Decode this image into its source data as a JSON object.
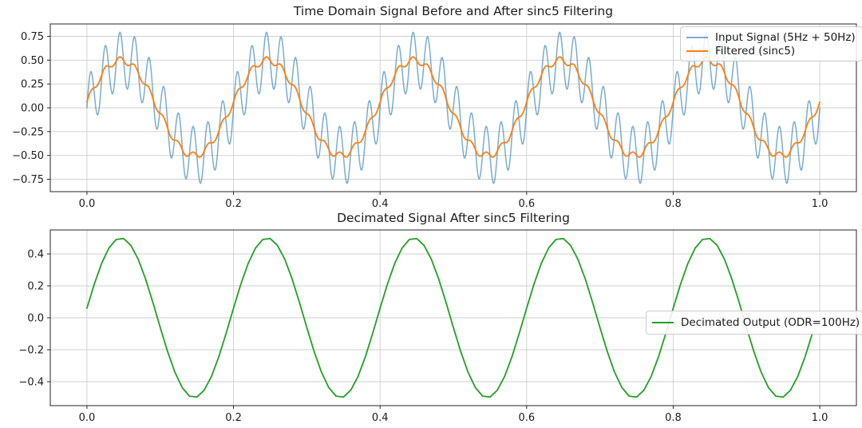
{
  "figure": {
    "background": "#ffffff",
    "grid_color": "#cfcfcf",
    "spine_color": "#262626",
    "text_color": "#1c1c1c"
  },
  "chart_data": [
    {
      "type": "line",
      "title": "Time Domain Signal Before and After sinc5 Filtering",
      "xlabel": "",
      "ylabel": "",
      "xlim": [
        -0.05,
        1.05
      ],
      "ylim": [
        -0.88,
        0.88
      ],
      "xticks": [
        "0.0",
        "0.2",
        "0.4",
        "0.6",
        "0.8",
        "1.0"
      ],
      "xtick_values": [
        0.0,
        0.2,
        0.4,
        0.6,
        0.8,
        1.0
      ],
      "yticks": [
        "0.75",
        "0.50",
        "0.25",
        "0.00",
        "−0.25",
        "−0.50",
        "−0.75"
      ],
      "ytick_values": [
        0.75,
        0.5,
        0.25,
        0.0,
        -0.25,
        -0.5,
        -0.75
      ],
      "grid": true,
      "legend_position": "upper right",
      "series": [
        {
          "name": "Input Signal (5Hz + 50Hz)",
          "color": "#1f77b4",
          "opacity": 0.6,
          "linewidth": 1.5,
          "signal": {
            "description": "sum of sinusoids",
            "components": [
              {
                "amp": 0.5,
                "freq": 5,
                "phase": 0
              },
              {
                "amp": 0.3,
                "freq": 50,
                "phase": 0
              }
            ],
            "t_start": 0,
            "t_end": 1.0,
            "sample_rate": 1000
          }
        },
        {
          "name": "Filtered (sinc5)",
          "color": "#ff7f0e",
          "opacity": 1,
          "linewidth": 1.8,
          "signal": {
            "description": "5Hz component with residual 50Hz ripple after sinc5 filter",
            "components": [
              {
                "amp": 0.5,
                "freq": 5,
                "phase": 0.12
              },
              {
                "amp": 0.035,
                "freq": 50,
                "phase": 0
              }
            ],
            "t_start": 0,
            "t_end": 1.0,
            "sample_rate": 1000
          }
        }
      ]
    },
    {
      "type": "line",
      "title": "Decimated Signal After sinc5 Filtering",
      "xlabel": "",
      "ylabel": "",
      "xlim": [
        -0.05,
        1.05
      ],
      "ylim": [
        -0.55,
        0.55
      ],
      "xticks": [
        "0.0",
        "0.2",
        "0.4",
        "0.6",
        "0.8",
        "1.0"
      ],
      "xtick_values": [
        0.0,
        0.2,
        0.4,
        0.6,
        0.8,
        1.0
      ],
      "yticks": [
        "0.4",
        "0.2",
        "0.0",
        "−0.2",
        "−0.4"
      ],
      "ytick_values": [
        0.4,
        0.2,
        0.0,
        -0.2,
        -0.4
      ],
      "grid": true,
      "legend_position": "center right",
      "series": [
        {
          "name": "Decimated Output (ODR=100Hz)",
          "color": "#23a123",
          "opacity": 1,
          "linewidth": 1.8,
          "signal": {
            "description": "5Hz sine decimated to 100Hz output data rate",
            "components": [
              {
                "amp": 0.5,
                "freq": 5,
                "phase": 0.12
              }
            ],
            "t_start": 0,
            "t_end": 0.99,
            "sample_rate": 100
          }
        }
      ]
    }
  ]
}
